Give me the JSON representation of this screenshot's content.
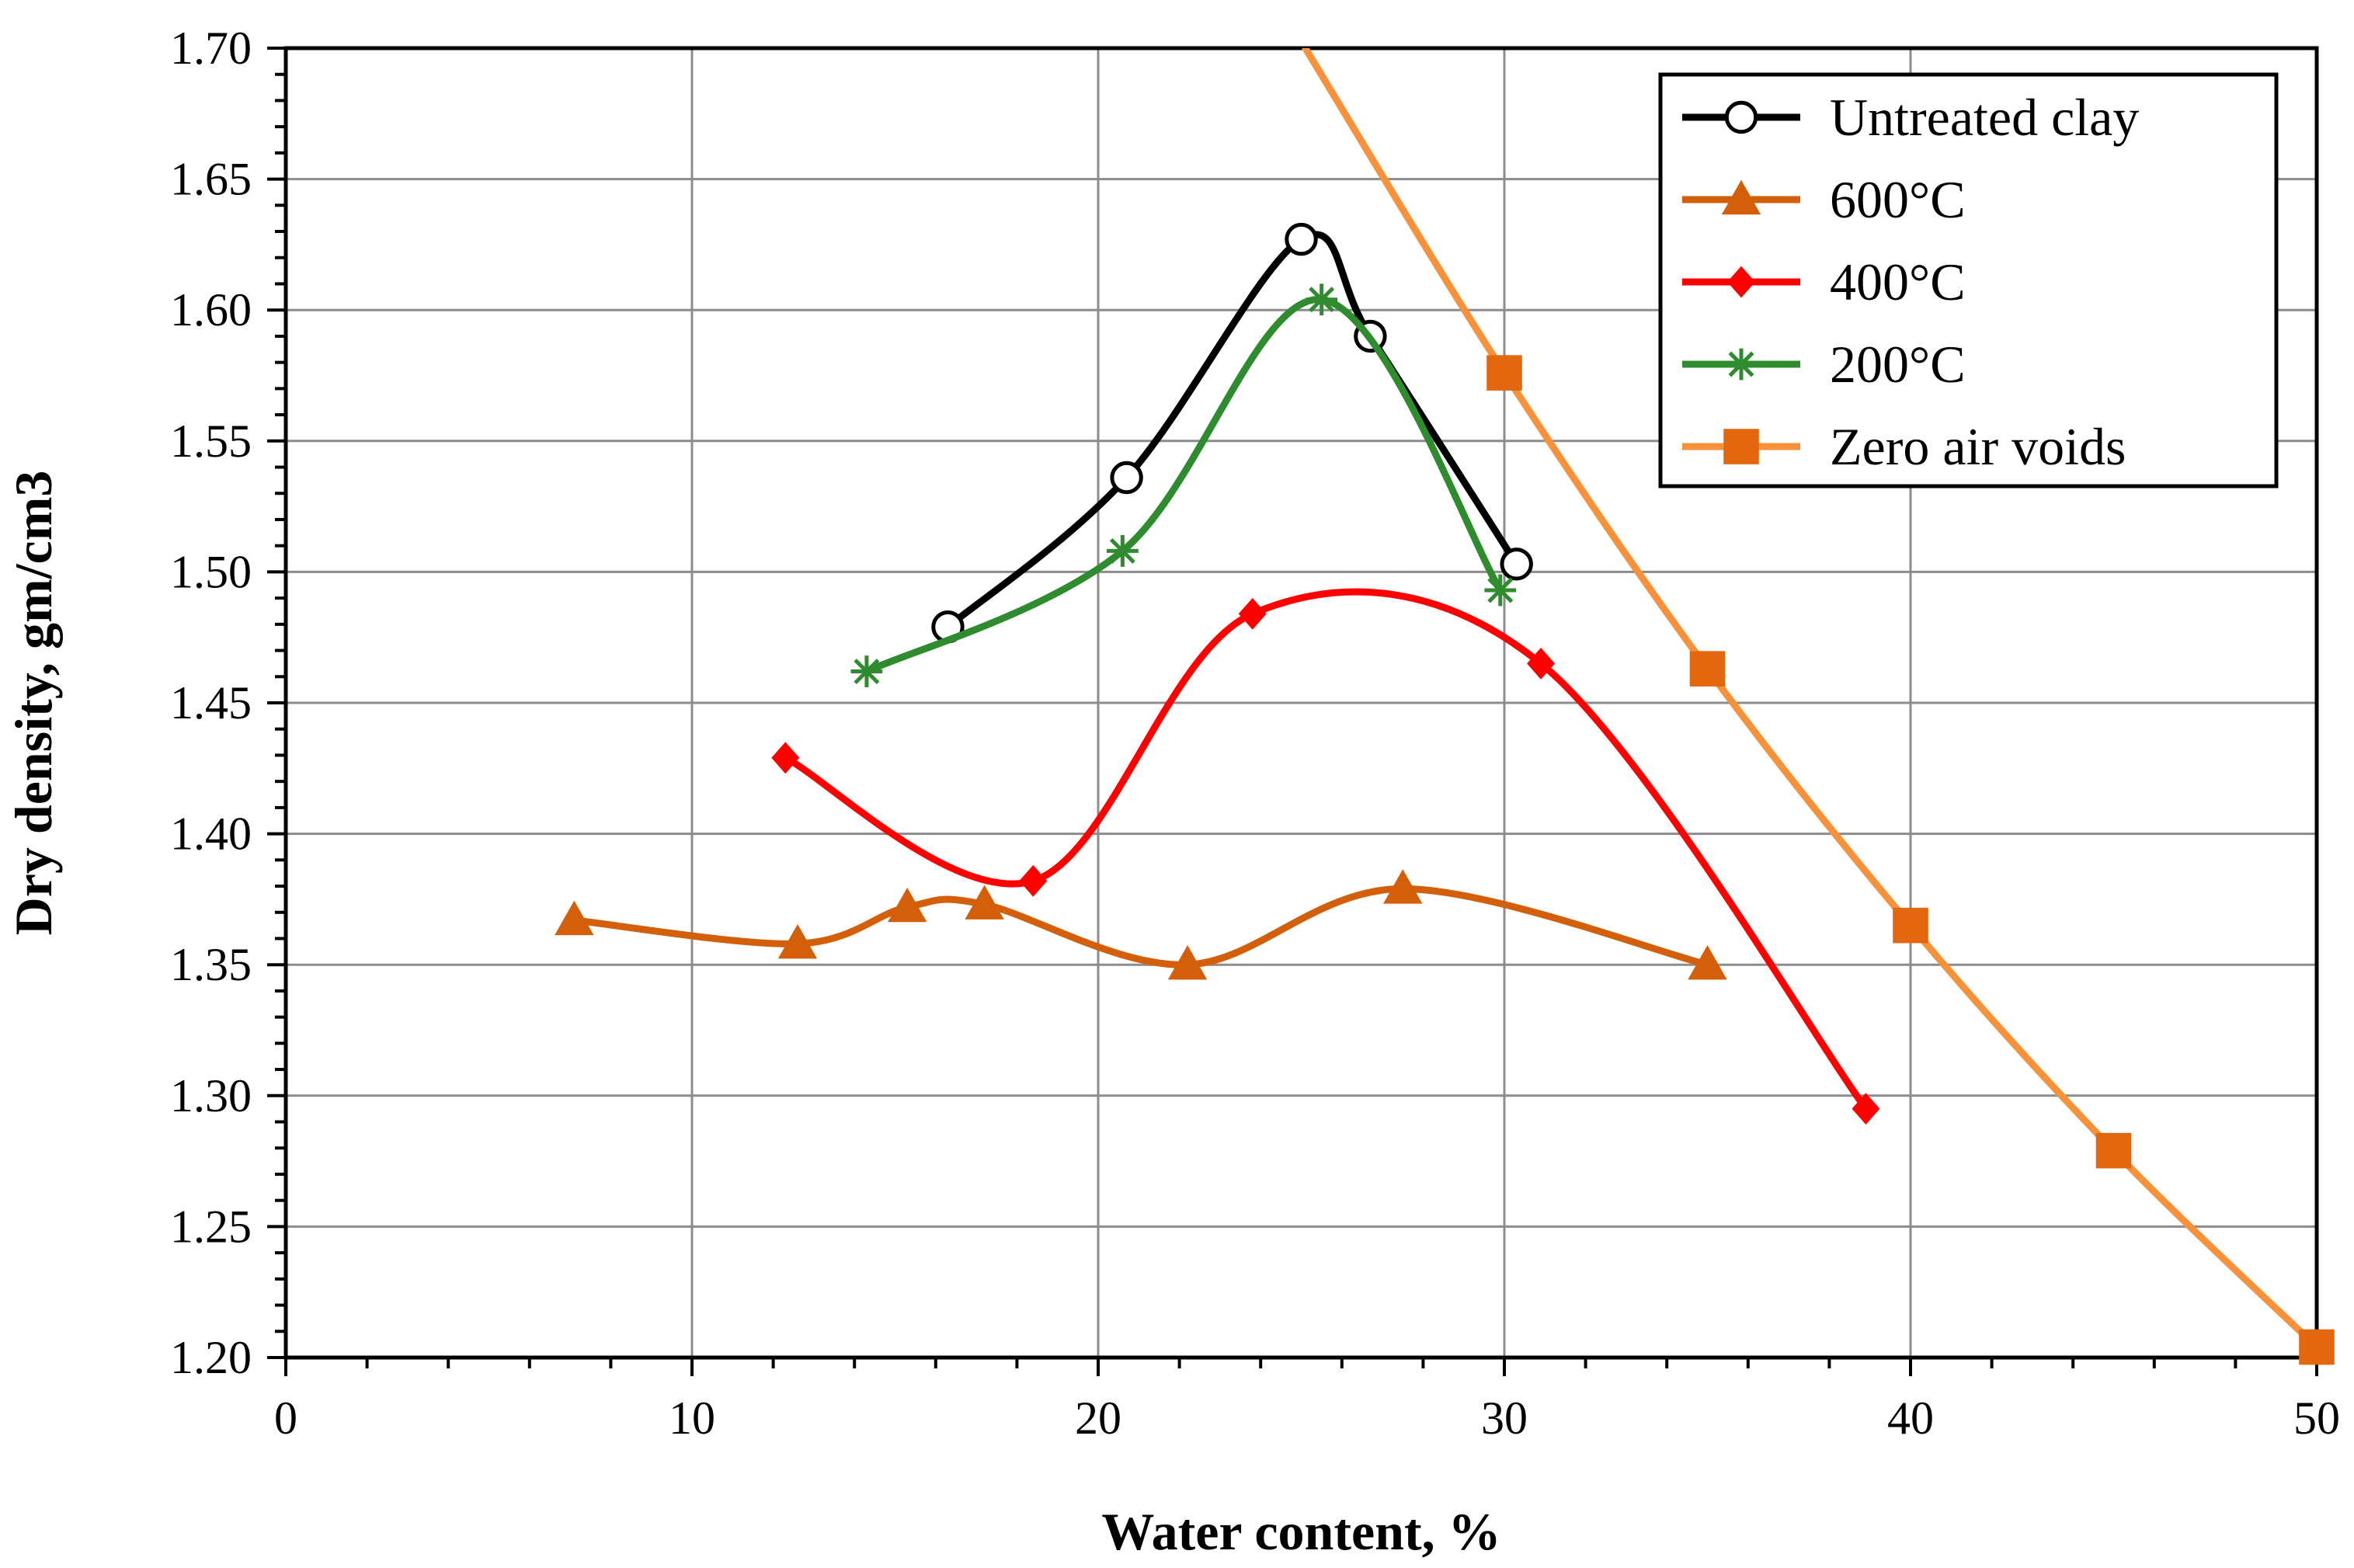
{
  "chart_data": {
    "type": "line",
    "title": "",
    "xlabel": "Water content, %",
    "ylabel": "Dry density, gm/cm3",
    "xlim": [
      0,
      50
    ],
    "ylim": [
      1.2,
      1.7
    ],
    "x_major_step": 10,
    "x_minor_step": 2,
    "y_major_step": 0.05,
    "y_minor_step": 0.01,
    "grid": true,
    "legend_position": "top-right",
    "x_ticks": [
      "0",
      "10",
      "20",
      "30",
      "40",
      "50"
    ],
    "y_ticks": [
      "1.20",
      "1.25",
      "1.30",
      "1.35",
      "1.40",
      "1.45",
      "1.50",
      "1.55",
      "1.60",
      "1.65",
      "1.70"
    ],
    "series": [
      {
        "name": "Untreated clay",
        "color": "#000000",
        "marker": "circle",
        "x": [
          16.3,
          20.7,
          25.0,
          26.7,
          30.3
        ],
        "y": [
          1.479,
          1.536,
          1.627,
          1.59,
          1.503
        ]
      },
      {
        "name": "600°C",
        "color": "#d45f0a",
        "marker": "triangle",
        "x": [
          7.1,
          12.6,
          15.3,
          17.2,
          22.2,
          27.5,
          35.0
        ],
        "y": [
          1.367,
          1.358,
          1.372,
          1.373,
          1.35,
          1.379,
          1.35
        ]
      },
      {
        "name": "400°C",
        "color": "#ff0000",
        "marker": "diamond",
        "x": [
          12.3,
          18.4,
          23.8,
          30.9,
          38.9
        ],
        "y": [
          1.429,
          1.382,
          1.484,
          1.465,
          1.295
        ]
      },
      {
        "name": "200°C",
        "color": "#2e8b2e",
        "marker": "asterisk",
        "x": [
          14.3,
          20.6,
          25.5,
          29.9
        ],
        "y": [
          1.462,
          1.508,
          1.604,
          1.493
        ]
      },
      {
        "name": "Zero air voids",
        "color": "#f7923a",
        "marker": "square",
        "marker_color": "#e2670f",
        "x": [
          25.1,
          30.0,
          35.0,
          40.0,
          45.0,
          50.0
        ],
        "y": [
          1.7,
          1.576,
          1.463,
          1.365,
          1.279,
          1.204
        ]
      }
    ]
  }
}
